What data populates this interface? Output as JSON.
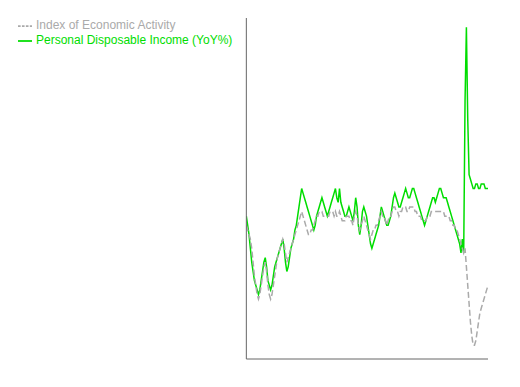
{
  "chart_data": {
    "type": "line",
    "x": [
      0,
      1,
      2,
      3,
      4,
      5,
      6,
      7,
      8,
      9,
      10,
      11,
      12,
      13,
      14,
      15,
      16,
      17,
      18,
      19,
      20,
      21,
      22,
      23,
      24,
      25,
      26,
      27,
      28,
      29,
      30,
      31,
      32,
      33,
      34,
      35,
      36,
      37,
      38,
      39,
      40,
      41,
      42,
      43,
      44,
      45,
      46,
      47,
      48,
      49,
      50,
      51,
      52,
      53,
      54,
      55,
      56,
      57,
      58,
      59,
      60,
      61,
      62,
      63,
      64,
      65,
      66,
      67,
      68,
      69,
      70,
      71,
      72,
      73,
      74,
      75,
      76,
      77,
      78,
      79,
      80,
      81,
      82,
      83,
      84,
      85,
      86,
      87,
      88,
      89,
      90,
      91,
      92,
      93,
      94,
      95,
      96,
      97,
      98,
      99,
      100,
      101,
      102,
      103,
      104,
      105,
      106,
      107,
      108,
      109,
      110,
      111,
      112,
      113,
      114,
      115,
      116,
      117,
      118,
      119,
      120,
      121,
      122,
      123,
      124,
      125,
      126,
      127,
      128,
      129,
      130,
      131,
      132,
      133,
      134,
      135,
      136,
      137,
      138,
      139,
      140,
      141,
      142,
      143,
      144,
      145,
      146,
      147,
      148,
      149,
      150,
      151,
      152,
      153,
      154,
      155,
      156,
      157,
      158,
      159,
      160,
      161,
      162,
      163,
      164,
      165,
      166,
      167,
      168,
      169,
      170,
      171,
      172,
      173,
      174,
      175,
      176,
      177,
      178,
      179
    ],
    "series": [
      {
        "name": "Personal Disposable Income (YoY%)",
        "color": "#00dd00",
        "line_style": "solid",
        "values": [
          1.5,
          0.5,
          -0.5,
          -2.0,
          -3.5,
          -4.5,
          -5.5,
          -6.0,
          -6.5,
          -7.0,
          -6.5,
          -5.5,
          -4.5,
          -3.5,
          -3.0,
          -4.0,
          -5.5,
          -6.0,
          -6.5,
          -6.0,
          -5.0,
          -4.0,
          -3.5,
          -3.0,
          -2.5,
          -2.0,
          -1.5,
          -1.0,
          -2.0,
          -3.5,
          -4.5,
          -4.0,
          -3.0,
          -2.0,
          -1.5,
          -1.0,
          0.0,
          0.5,
          1.5,
          2.5,
          3.5,
          4.5,
          4.0,
          3.5,
          3.0,
          2.5,
          2.0,
          1.5,
          1.0,
          0.5,
          0.0,
          0.5,
          1.5,
          2.0,
          2.5,
          3.0,
          3.5,
          3.0,
          2.5,
          2.0,
          1.5,
          2.0,
          2.5,
          3.0,
          3.5,
          4.0,
          4.5,
          3.5,
          3.0,
          4.5,
          3.0,
          2.5,
          2.0,
          1.5,
          1.5,
          2.0,
          2.5,
          2.0,
          1.5,
          1.0,
          2.0,
          3.5,
          2.5,
          0.5,
          -0.5,
          0.5,
          2.0,
          2.5,
          2.0,
          1.5,
          0.5,
          -0.5,
          -1.5,
          -2.0,
          -1.5,
          -1.0,
          -0.5,
          0.0,
          0.5,
          1.5,
          2.5,
          2.0,
          1.5,
          1.0,
          0.5,
          0.5,
          1.0,
          1.5,
          2.5,
          3.5,
          4.0,
          3.5,
          3.0,
          2.5,
          2.5,
          3.0,
          3.5,
          4.0,
          4.5,
          4.0,
          3.5,
          3.5,
          4.0,
          4.5,
          4.5,
          4.0,
          3.5,
          3.0,
          2.5,
          2.0,
          1.5,
          1.0,
          0.5,
          1.0,
          1.5,
          2.0,
          2.5,
          3.0,
          3.5,
          3.5,
          3.0,
          3.5,
          4.0,
          4.5,
          4.5,
          4.0,
          3.5,
          3.5,
          3.5,
          3.0,
          2.5,
          2.0,
          1.5,
          1.0,
          0.5,
          0.0,
          -0.5,
          -1.0,
          -1.5,
          -2.5,
          -1.0,
          -2.5,
          14.0,
          22.0,
          12.0,
          6.0,
          5.5,
          5.0,
          4.5,
          4.5,
          5.0,
          5.0,
          4.5,
          4.5,
          5.0,
          5.0,
          5.0,
          4.5,
          4.5,
          4.5
        ]
      },
      {
        "name": "Index of Economic Activity",
        "color": "#aaaaaa",
        "line_style": "dashed",
        "values": [
          0.5,
          0.0,
          -0.5,
          -1.0,
          -2.0,
          -3.5,
          -5.0,
          -6.0,
          -7.0,
          -7.5,
          -7.0,
          -6.0,
          -5.0,
          -4.0,
          -3.5,
          -4.5,
          -6.0,
          -7.0,
          -7.5,
          -7.0,
          -6.0,
          -5.0,
          -4.0,
          -3.0,
          -2.5,
          -2.0,
          -1.5,
          -1.0,
          -1.5,
          -2.5,
          -3.5,
          -3.0,
          -2.5,
          -2.0,
          -1.5,
          -1.0,
          -0.5,
          0.0,
          0.5,
          1.0,
          1.5,
          2.0,
          1.5,
          1.0,
          0.5,
          0.0,
          -0.5,
          -0.5,
          0.0,
          0.0,
          0.5,
          1.0,
          1.5,
          1.5,
          2.0,
          2.0,
          2.0,
          1.5,
          1.5,
          1.5,
          1.5,
          1.5,
          2.0,
          2.0,
          2.0,
          1.5,
          2.0,
          1.5,
          1.5,
          2.0,
          1.5,
          1.0,
          1.0,
          1.0,
          1.5,
          1.5,
          1.5,
          1.0,
          1.0,
          0.5,
          1.5,
          2.0,
          1.5,
          0.5,
          0.0,
          0.5,
          1.0,
          1.5,
          1.0,
          0.5,
          0.0,
          -0.5,
          -1.0,
          -0.5,
          0.0,
          0.0,
          0.5,
          0.5,
          1.0,
          1.5,
          2.0,
          1.5,
          1.5,
          1.0,
          0.5,
          1.0,
          1.5,
          1.5,
          2.0,
          2.5,
          2.5,
          2.0,
          2.0,
          1.5,
          2.0,
          2.0,
          2.5,
          2.5,
          2.5,
          2.0,
          2.0,
          2.5,
          2.5,
          2.5,
          2.5,
          2.0,
          2.0,
          1.5,
          1.5,
          1.5,
          1.0,
          1.0,
          1.0,
          1.0,
          1.5,
          1.5,
          1.5,
          2.0,
          2.0,
          2.0,
          2.0,
          2.0,
          2.0,
          2.0,
          2.0,
          2.0,
          2.0,
          1.5,
          1.5,
          1.5,
          1.5,
          1.0,
          1.0,
          0.5,
          0.5,
          0.0,
          0.0,
          -0.5,
          -1.0,
          -1.5,
          -2.0,
          -2.5,
          -2.0,
          -4.0,
          -6.0,
          -8.0,
          -10.0,
          -11.5,
          -12.5,
          -12.5,
          -12.0,
          -11.0,
          -10.0,
          -9.0,
          -8.5,
          -8.0,
          -7.5,
          -7.0,
          -6.5,
          -6.0
        ]
      }
    ],
    "xlim": [
      0,
      179
    ],
    "xticks": [],
    "ylim": [
      -14,
      23
    ],
    "yticks": [
      0
    ],
    "grid": true,
    "tick_labels": false,
    "legend": "upper left"
  }
}
